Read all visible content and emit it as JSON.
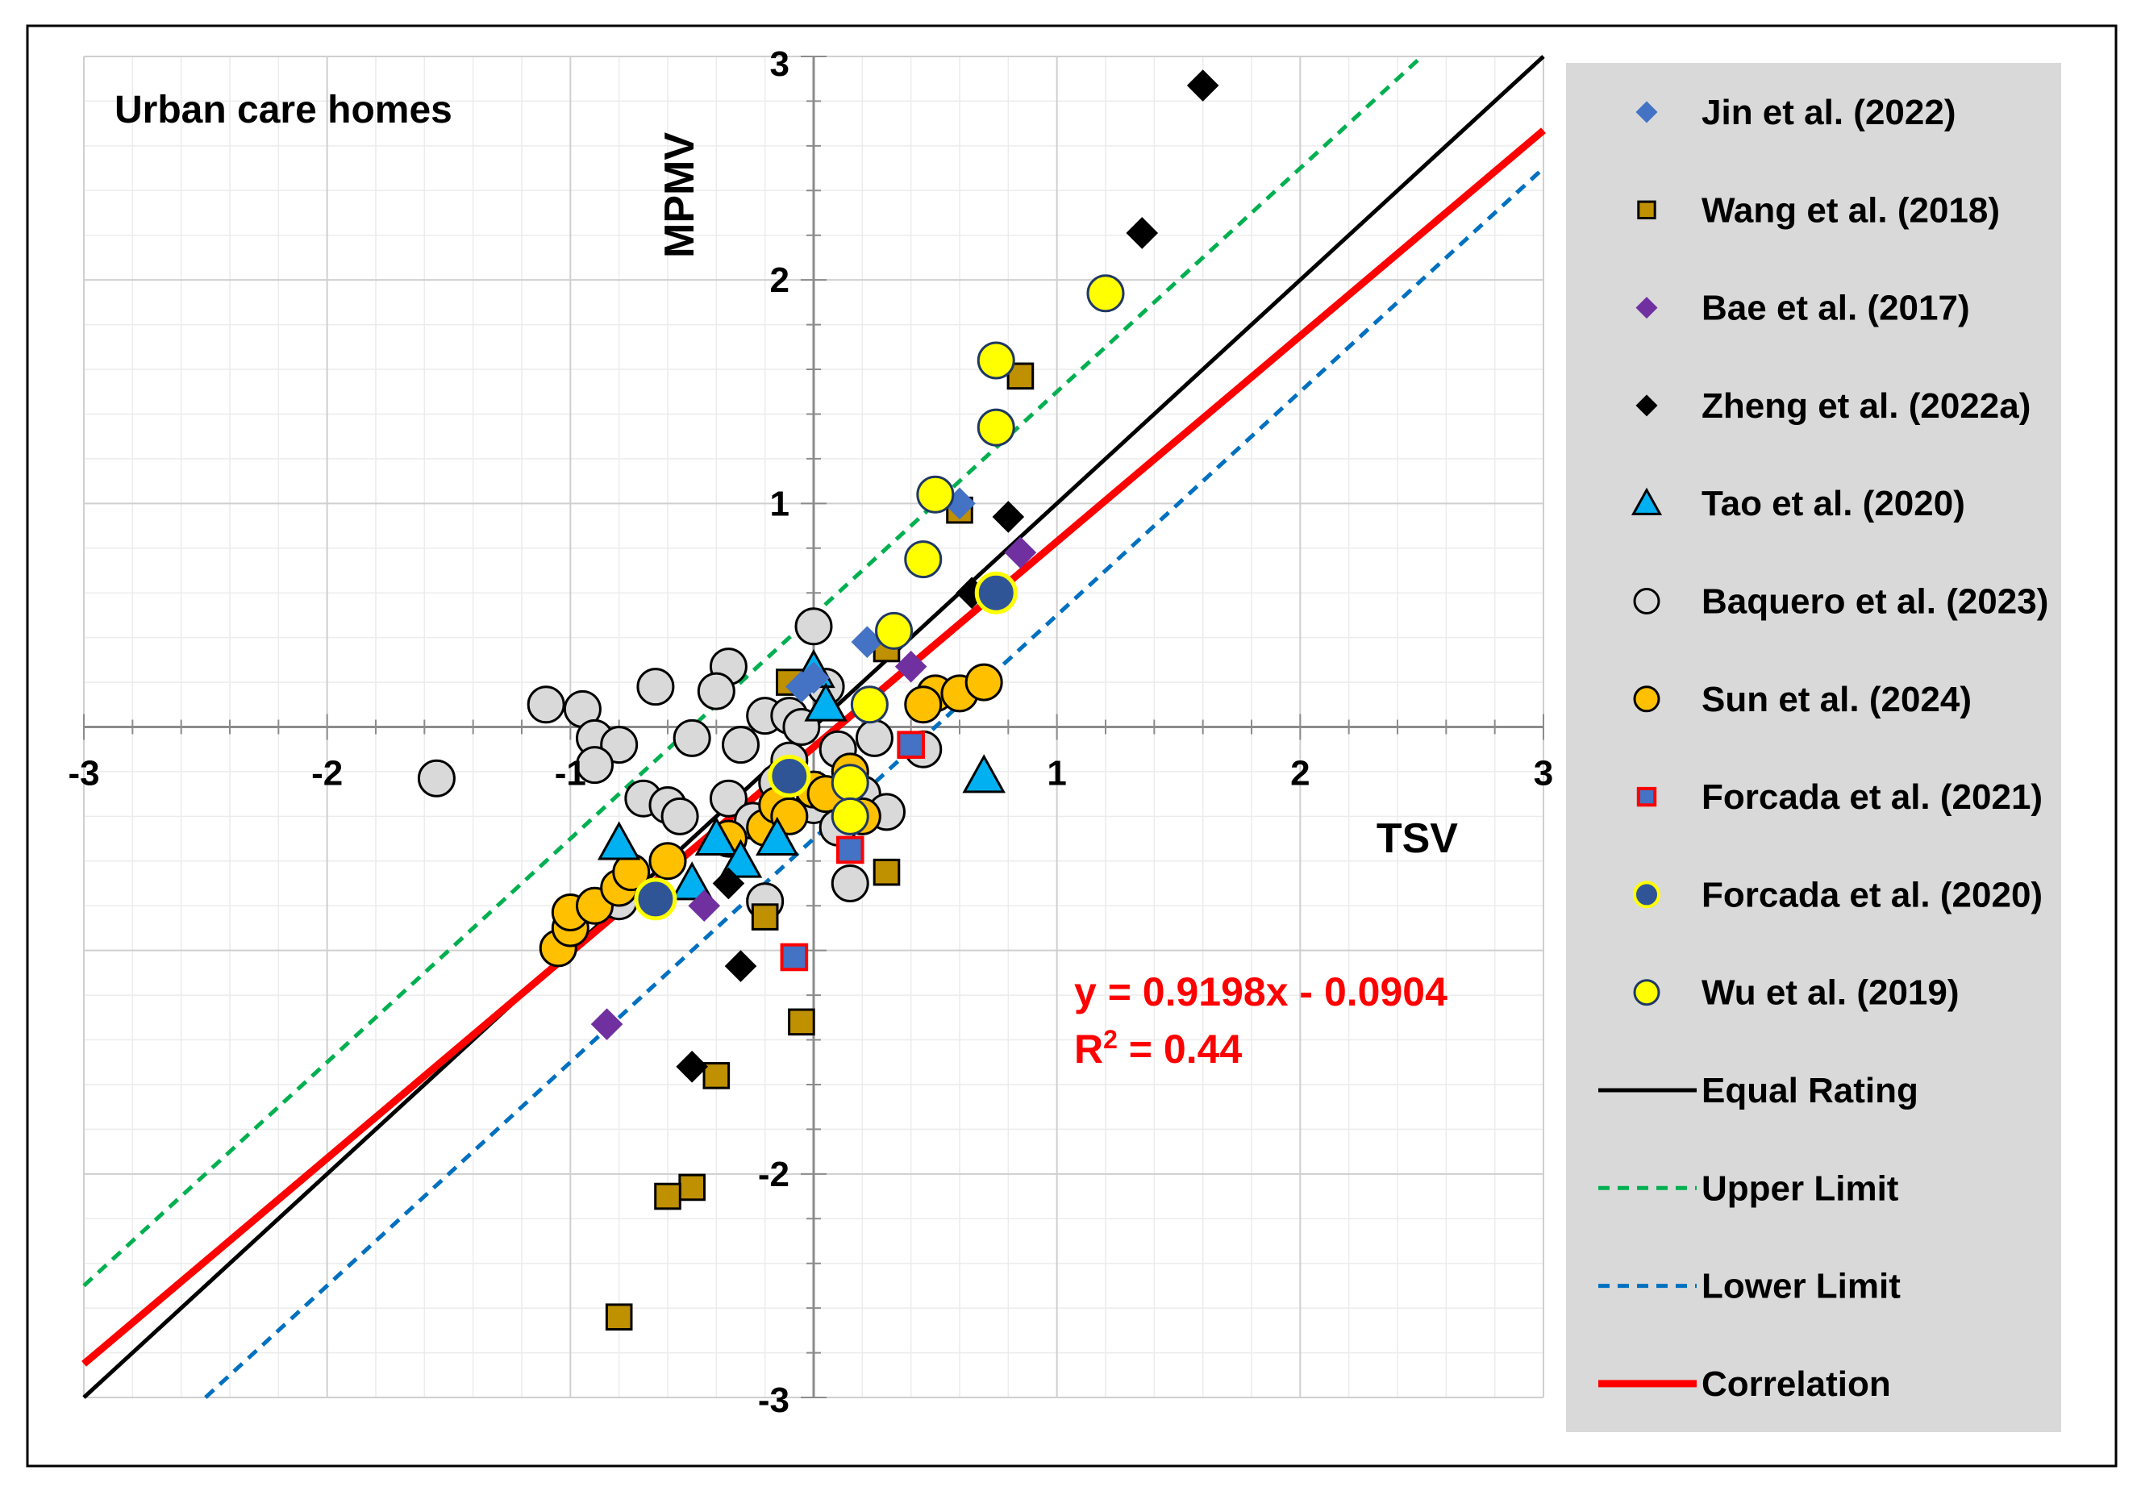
{
  "chart_data": {
    "type": "scatter",
    "title": "",
    "annotation": "Urban care homes",
    "xlabel": "TSV",
    "ylabel": "MPMV",
    "xlim": [
      -3,
      3
    ],
    "ylim": [
      -3,
      3
    ],
    "xticks": [
      -3,
      -2,
      -1,
      1,
      2,
      3
    ],
    "yticks": [
      -3,
      -2,
      1,
      2,
      3
    ],
    "xtick_labels": [
      "-3",
      "-2",
      "-1",
      "1",
      "2",
      "3"
    ],
    "ytick_labels": [
      "-3",
      "-2",
      "1",
      "2",
      "3"
    ],
    "grid": true,
    "equation": "y = 0.9198x - 0.0904",
    "r2_prefix": "R",
    "r2_sup": "2",
    "r2_suffix": " = 0.44",
    "series": [
      {
        "name": "Jin et al. (2022)",
        "marker": "diamond",
        "fill": "#4472c4",
        "stroke": "none",
        "points": [
          [
            0.22,
            0.38
          ],
          [
            0.6,
            1.0
          ],
          [
            -0.05,
            0.18
          ],
          [
            0.0,
            0.22
          ]
        ]
      },
      {
        "name": "Wang et al. (2018)",
        "marker": "square",
        "fill": "#bf9000",
        "stroke": "#000000",
        "points": [
          [
            0.85,
            1.57
          ],
          [
            0.6,
            0.97
          ],
          [
            0.3,
            0.35
          ],
          [
            0.3,
            -0.65
          ],
          [
            -0.2,
            -0.85
          ],
          [
            -0.05,
            -1.32
          ],
          [
            -0.4,
            -1.56
          ],
          [
            -0.5,
            -2.06
          ],
          [
            -0.6,
            -2.1
          ],
          [
            -0.8,
            -2.64
          ],
          [
            -0.1,
            0.2
          ]
        ]
      },
      {
        "name": "Bae et al. (2017)",
        "marker": "diamond",
        "fill": "#7030a0",
        "stroke": "none",
        "points": [
          [
            0.85,
            0.78
          ],
          [
            0.4,
            0.27
          ],
          [
            -0.45,
            -0.8
          ],
          [
            -0.85,
            -1.33
          ]
        ]
      },
      {
        "name": "Zheng et al. (2022a)",
        "marker": "diamond",
        "fill": "#000000",
        "stroke": "none",
        "points": [
          [
            1.6,
            2.87
          ],
          [
            1.35,
            2.21
          ],
          [
            0.8,
            0.94
          ],
          [
            0.65,
            0.6
          ],
          [
            -0.35,
            -0.7
          ],
          [
            -0.3,
            -1.07
          ],
          [
            -0.5,
            -1.52
          ]
        ]
      },
      {
        "name": "Tao et al. (2020)",
        "marker": "triangle",
        "fill": "#00b0f0",
        "stroke": "#000000",
        "points": [
          [
            0.7,
            -0.22
          ],
          [
            -0.8,
            -0.52
          ],
          [
            -0.5,
            -0.7
          ],
          [
            -0.4,
            -0.5
          ],
          [
            -0.3,
            -0.6
          ],
          [
            0.0,
            0.25
          ],
          [
            -0.15,
            -0.5
          ],
          [
            0.05,
            0.1
          ]
        ]
      },
      {
        "name": "Baquero et al. (2023)",
        "marker": "circle",
        "fill": "#d9d9d9",
        "stroke": "#000000",
        "points": [
          [
            -1.55,
            -0.23
          ],
          [
            -1.1,
            0.1
          ],
          [
            -0.95,
            0.08
          ],
          [
            -0.9,
            -0.05
          ],
          [
            -0.8,
            -0.08
          ],
          [
            -0.9,
            -0.17
          ],
          [
            -0.65,
            0.18
          ],
          [
            -0.5,
            -0.05
          ],
          [
            -0.35,
            0.27
          ],
          [
            -0.4,
            0.16
          ],
          [
            -0.3,
            -0.08
          ],
          [
            -0.2,
            0.05
          ],
          [
            -0.1,
            0.05
          ],
          [
            0.0,
            0.45
          ],
          [
            0.05,
            0.18
          ],
          [
            -0.05,
            0.0
          ],
          [
            -0.1,
            -0.15
          ],
          [
            0.1,
            -0.1
          ],
          [
            0.2,
            -0.3
          ],
          [
            -0.7,
            -0.32
          ],
          [
            -0.6,
            -0.35
          ],
          [
            -0.55,
            -0.4
          ],
          [
            -0.35,
            -0.32
          ],
          [
            -0.25,
            -0.42
          ],
          [
            -0.15,
            -0.25
          ],
          [
            0.0,
            -0.35
          ],
          [
            0.1,
            -0.45
          ],
          [
            0.3,
            -0.38
          ],
          [
            -0.2,
            -0.78
          ],
          [
            0.15,
            -0.7
          ],
          [
            0.45,
            -0.1
          ],
          [
            -0.8,
            -0.78
          ],
          [
            0.25,
            -0.05
          ]
        ]
      },
      {
        "name": "Sun et al. (2024)",
        "marker": "circle",
        "fill": "#ffc000",
        "stroke": "#000000",
        "points": [
          [
            -1.05,
            -0.99
          ],
          [
            -1.0,
            -0.9
          ],
          [
            -1.0,
            -0.83
          ],
          [
            -0.9,
            -0.8
          ],
          [
            -0.8,
            -0.72
          ],
          [
            -0.75,
            -0.65
          ],
          [
            -0.6,
            -0.6
          ],
          [
            -0.35,
            -0.5
          ],
          [
            -0.2,
            -0.45
          ],
          [
            -0.15,
            -0.35
          ],
          [
            0.0,
            -0.28
          ],
          [
            0.05,
            -0.3
          ],
          [
            0.15,
            -0.2
          ],
          [
            0.5,
            0.15
          ],
          [
            0.6,
            0.15
          ],
          [
            0.7,
            0.2
          ],
          [
            0.45,
            0.1
          ],
          [
            -0.1,
            -0.4
          ],
          [
            0.2,
            -0.4
          ]
        ]
      },
      {
        "name": "Forcada et al. (2021)",
        "marker": "square",
        "fill": "#4472c4",
        "stroke": "#ff0000",
        "points": [
          [
            0.4,
            -0.08
          ],
          [
            0.15,
            -0.55
          ],
          [
            -0.08,
            -1.03
          ]
        ]
      },
      {
        "name": "Forcada et al. (2020)",
        "marker": "circle",
        "fill": "#2f5597",
        "stroke": "#ffff00",
        "points": [
          [
            0.75,
            0.6
          ],
          [
            -0.65,
            -0.77
          ],
          [
            -0.1,
            -0.22
          ]
        ]
      },
      {
        "name": "Wu et al. (2019)",
        "marker": "circle",
        "fill": "#ffff00",
        "stroke": "#1f3864",
        "points": [
          [
            1.2,
            1.94
          ],
          [
            0.75,
            1.64
          ],
          [
            0.75,
            1.34
          ],
          [
            0.5,
            1.04
          ],
          [
            0.45,
            0.75
          ],
          [
            0.33,
            0.43
          ],
          [
            0.23,
            0.1
          ],
          [
            0.15,
            -0.25
          ],
          [
            0.15,
            -0.4
          ]
        ]
      }
    ],
    "lines": [
      {
        "name": "Equal Rating",
        "slope": 1,
        "intercept": 0,
        "color": "#000000",
        "dash": "",
        "width": 5
      },
      {
        "name": "Upper Limit",
        "slope": 1,
        "intercept": 0.5,
        "color": "#00b050",
        "dash": "14 10",
        "width": 5
      },
      {
        "name": "Lower Limit",
        "slope": 1,
        "intercept": -0.5,
        "color": "#0070c0",
        "dash": "14 10",
        "width": 5
      },
      {
        "name": "Correlation",
        "slope": 0.9198,
        "intercept": -0.0904,
        "color": "#ff0000",
        "dash": "",
        "width": 9
      }
    ]
  }
}
